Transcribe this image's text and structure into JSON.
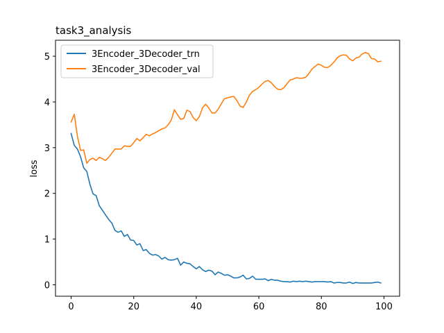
{
  "chart_data": {
    "type": "line",
    "title": "task3_analysis",
    "xlabel": "",
    "ylabel": "loss",
    "xlim": [
      -5,
      105
    ],
    "ylim": [
      -0.25,
      5.35
    ],
    "xticks": [
      0,
      20,
      40,
      60,
      80,
      100
    ],
    "yticks": [
      0,
      1,
      2,
      3,
      4,
      5
    ],
    "grid": false,
    "legend_position": "upper-left",
    "series": [
      {
        "name": "3Encoder_3Decoder_trn",
        "color": "#1f77b4",
        "x": [
          0,
          1,
          2,
          3,
          4,
          5,
          6,
          7,
          8,
          9,
          10,
          11,
          12,
          13,
          14,
          15,
          16,
          17,
          18,
          19,
          20,
          21,
          22,
          23,
          24,
          25,
          26,
          27,
          28,
          29,
          30,
          31,
          32,
          33,
          34,
          35,
          36,
          37,
          38,
          39,
          40,
          41,
          42,
          43,
          44,
          45,
          46,
          47,
          48,
          49,
          50,
          51,
          52,
          53,
          54,
          55,
          56,
          57,
          58,
          59,
          60,
          61,
          62,
          63,
          64,
          65,
          66,
          67,
          68,
          69,
          70,
          71,
          72,
          73,
          74,
          75,
          76,
          77,
          78,
          79,
          80,
          81,
          82,
          83,
          84,
          85,
          86,
          87,
          88,
          89,
          90,
          91,
          92,
          93,
          94,
          95,
          96,
          97,
          98,
          99
        ],
        "values": [
          3.31,
          3.05,
          2.97,
          2.8,
          2.56,
          2.48,
          2.2,
          1.99,
          1.95,
          1.73,
          1.63,
          1.53,
          1.43,
          1.35,
          1.19,
          1.15,
          1.18,
          1.06,
          1.1,
          0.98,
          0.97,
          0.87,
          0.9,
          0.75,
          0.77,
          0.69,
          0.65,
          0.66,
          0.63,
          0.56,
          0.6,
          0.55,
          0.54,
          0.55,
          0.58,
          0.43,
          0.5,
          0.47,
          0.46,
          0.4,
          0.35,
          0.4,
          0.33,
          0.29,
          0.32,
          0.3,
          0.22,
          0.28,
          0.25,
          0.21,
          0.22,
          0.19,
          0.15,
          0.15,
          0.17,
          0.21,
          0.13,
          0.14,
          0.19,
          0.12,
          0.12,
          0.12,
          0.13,
          0.09,
          0.12,
          0.1,
          0.1,
          0.08,
          0.07,
          0.07,
          0.06,
          0.08,
          0.07,
          0.08,
          0.07,
          0.08,
          0.07,
          0.06,
          0.07,
          0.07,
          0.07,
          0.07,
          0.06,
          0.07,
          0.04,
          0.05,
          0.05,
          0.04,
          0.04,
          0.06,
          0.03,
          0.05,
          0.04,
          0.04,
          0.04,
          0.04,
          0.04,
          0.05,
          0.06,
          0.04
        ]
      },
      {
        "name": "3Encoder_3Decoder_val",
        "color": "#ff7f0e",
        "x": [
          0,
          1,
          2,
          3,
          4,
          5,
          6,
          7,
          8,
          9,
          10,
          11,
          12,
          13,
          14,
          15,
          16,
          17,
          18,
          19,
          20,
          21,
          22,
          23,
          24,
          25,
          26,
          27,
          28,
          29,
          30,
          31,
          32,
          33,
          34,
          35,
          36,
          37,
          38,
          39,
          40,
          41,
          42,
          43,
          44,
          45,
          46,
          47,
          48,
          49,
          50,
          51,
          52,
          53,
          54,
          55,
          56,
          57,
          58,
          59,
          60,
          61,
          62,
          63,
          64,
          65,
          66,
          67,
          68,
          69,
          70,
          71,
          72,
          73,
          74,
          75,
          76,
          77,
          78,
          79,
          80,
          81,
          82,
          83,
          84,
          85,
          86,
          87,
          88,
          89,
          90,
          91,
          92,
          93,
          94,
          95,
          96,
          97,
          98,
          99
        ],
        "values": [
          3.56,
          3.73,
          3.25,
          2.94,
          2.95,
          2.66,
          2.74,
          2.77,
          2.72,
          2.79,
          2.76,
          2.72,
          2.79,
          2.88,
          2.97,
          2.97,
          2.97,
          3.04,
          3.03,
          3.03,
          3.11,
          3.2,
          3.15,
          3.22,
          3.29,
          3.26,
          3.3,
          3.33,
          3.37,
          3.41,
          3.43,
          3.5,
          3.6,
          3.83,
          3.72,
          3.62,
          3.64,
          3.82,
          3.79,
          3.66,
          3.59,
          3.68,
          3.87,
          3.95,
          3.87,
          3.76,
          3.76,
          3.84,
          3.96,
          4.07,
          4.09,
          4.11,
          4.12,
          4.03,
          3.91,
          3.88,
          4.0,
          4.15,
          4.23,
          4.27,
          4.32,
          4.39,
          4.45,
          4.47,
          4.42,
          4.34,
          4.28,
          4.27,
          4.31,
          4.4,
          4.48,
          4.5,
          4.53,
          4.52,
          4.52,
          4.54,
          4.62,
          4.72,
          4.78,
          4.83,
          4.8,
          4.76,
          4.75,
          4.8,
          4.87,
          4.96,
          5.01,
          5.03,
          5.02,
          4.94,
          4.9,
          4.96,
          4.98,
          5.05,
          5.08,
          5.06,
          4.95,
          4.94,
          4.88,
          4.89
        ]
      }
    ]
  }
}
